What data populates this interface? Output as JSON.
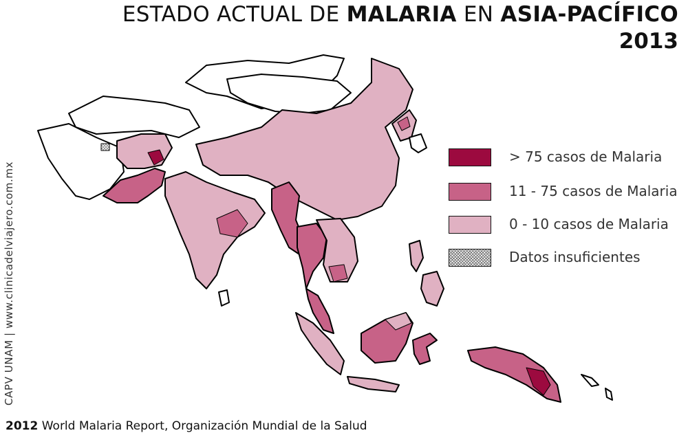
{
  "header": {
    "title_part1": "ESTADO ACTUAL DE ",
    "title_part2": "MALARIA",
    "title_part3": " EN ",
    "title_part4": "ASIA-PACÍFICO",
    "year": "2013"
  },
  "sidebar_credit": "CAPV UNAM | www.clinicadelviajero.com.mx",
  "source": {
    "year": "2012",
    "text": " World Malaria Report, Organización Mundial de la Salud"
  },
  "legend": {
    "items": [
      {
        "label": "> 75 casos de Malaria",
        "color": "#9c0a3f"
      },
      {
        "label": "11 - 75 casos de Malaria",
        "color": "#c76287"
      },
      {
        "label": "0 - 10 casos de Malaria",
        "color": "#e0b1c2"
      },
      {
        "label": "Datos insuficientes",
        "color": "#c8c8c8"
      }
    ]
  },
  "colors": {
    "high": "#9c0a3f",
    "mid": "#c76287",
    "low": "#e0b1c2",
    "none": "#ffffff",
    "border": "#000000"
  }
}
